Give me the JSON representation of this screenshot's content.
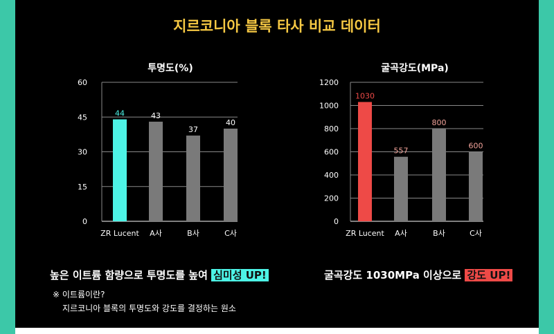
{
  "title": "지르코니아 블록 타사 비교 데이터",
  "colors": {
    "highlight_cyan": "#4df3e6",
    "highlight_red": "#ee4a47",
    "bar_gray": "#7a7a7a",
    "title_yellow": "#f6c843"
  },
  "chart_data": [
    {
      "type": "bar",
      "title": "투명도(%)",
      "categories": [
        "ZR Lucent",
        "A사",
        "B사",
        "C사"
      ],
      "values": [
        44,
        43,
        37,
        40
      ],
      "ylim": [
        0,
        60
      ],
      "yticks": [
        0,
        15,
        30,
        45,
        60
      ],
      "grid": true
    },
    {
      "type": "bar",
      "title": "굴곡강도(MPa)",
      "categories": [
        "ZR Lucent",
        "A사",
        "B사",
        "C사"
      ],
      "values": [
        1030,
        557,
        800,
        600
      ],
      "ylim": [
        0,
        1200
      ],
      "yticks": [
        0,
        200,
        400,
        600,
        800,
        1000,
        1200
      ],
      "grid": true
    }
  ],
  "captions": {
    "left_text": "높은 이트륨 함량으로 투명도를 높여",
    "left_highlight": "심미성 UP!",
    "right_text": "굴곡강도 1030MPa 이상으로",
    "right_highlight": "강도 UP!"
  },
  "note": {
    "line1": "※ 이트륨이란?",
    "line2": "지르코니아 블록의 투명도와 강도를 결정하는 원소"
  }
}
